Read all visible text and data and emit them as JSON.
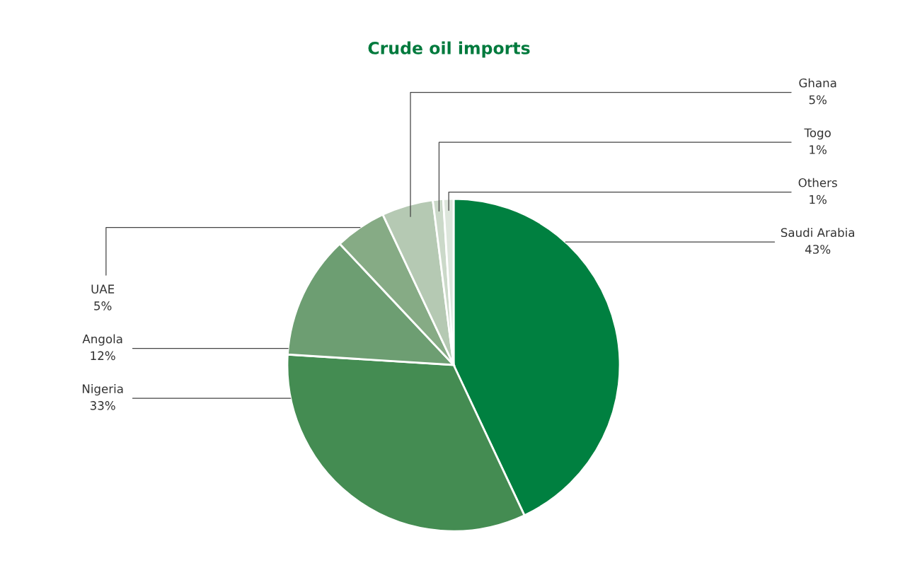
{
  "chart_data": {
    "type": "pie",
    "title": "Crude oil imports",
    "categories": [
      "Saudi Arabia",
      "Nigeria",
      "Angola",
      "UAE",
      "Ghana",
      "Togo",
      "Others"
    ],
    "values": [
      43,
      33,
      12,
      5,
      5,
      1,
      1
    ],
    "value_labels": [
      "43%",
      "33%",
      "12%",
      "5%",
      "5%",
      "1%",
      "1%"
    ],
    "colors": [
      "#008040",
      "#448c52",
      "#6d9e72",
      "#86ab85",
      "#b5c9b3",
      "#cbd9c9",
      "#dde6dc"
    ]
  }
}
